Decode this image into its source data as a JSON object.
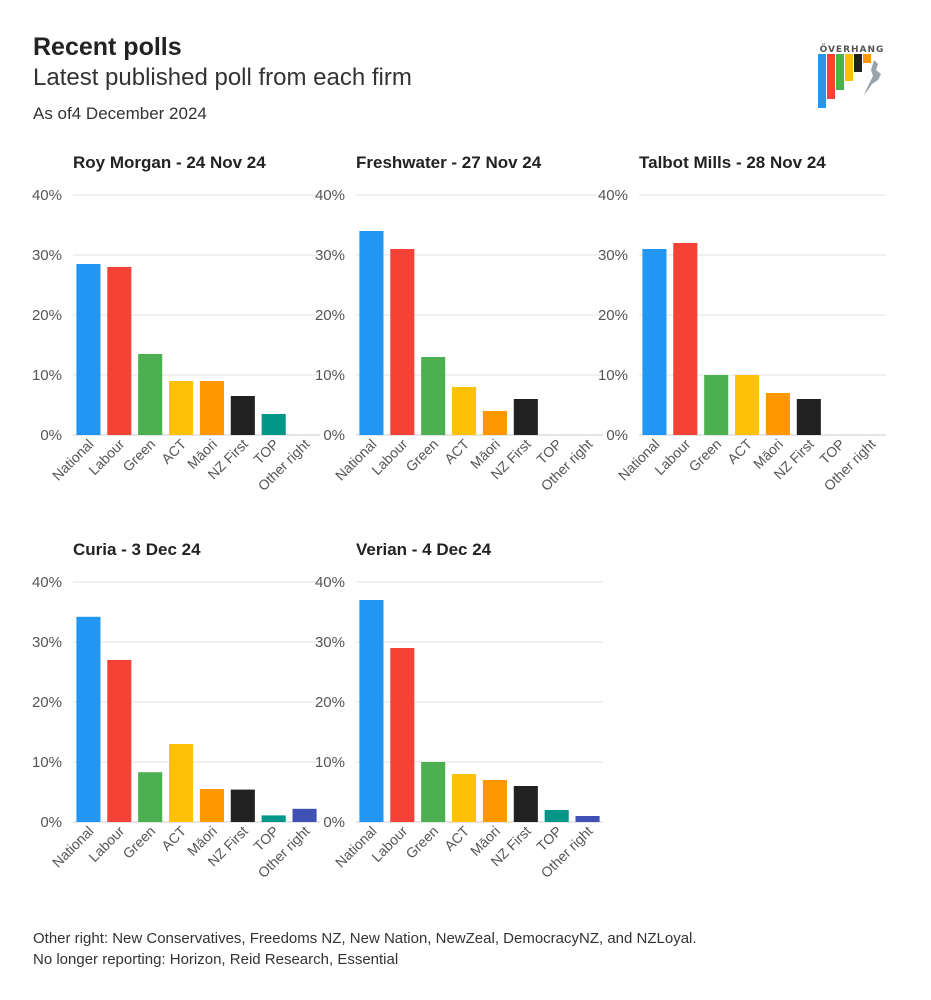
{
  "header": {
    "title": "Recent polls",
    "subtitle": "Latest published poll from each firm",
    "as_of": "As of4 December 2024"
  },
  "logo": {
    "text": "ÖVERHANG",
    "icon": "overhang-logo-icon"
  },
  "colors": {
    "National": "#2196f3",
    "Labour": "#f44336",
    "Green": "#4caf50",
    "ACT": "#ffc107",
    "Māori": "#ff9800",
    "NZ First": "#212121",
    "TOP": "#009688",
    "Other right": "#3f51b5",
    "grid": "#e3e3e3",
    "axis_text": "#555555"
  },
  "chart_data": [
    {
      "type": "bar",
      "title": "Roy Morgan - 24 Nov 24",
      "categories": [
        "National",
        "Labour",
        "Green",
        "ACT",
        "Māori",
        "NZ First",
        "TOP",
        "Other right"
      ],
      "values": [
        28.5,
        28,
        13.5,
        9,
        9,
        6.5,
        3.5,
        null
      ],
      "ylim": [
        0,
        40
      ],
      "yticks": [
        "0%",
        "10%",
        "20%",
        "30%",
        "40%"
      ],
      "grid": true
    },
    {
      "type": "bar",
      "title": "Freshwater - 27 Nov 24",
      "categories": [
        "National",
        "Labour",
        "Green",
        "ACT",
        "Māori",
        "NZ First",
        "TOP",
        "Other right"
      ],
      "values": [
        34,
        31,
        13,
        8,
        4,
        6,
        null,
        null
      ],
      "ylim": [
        0,
        40
      ],
      "yticks": [
        "0%",
        "10%",
        "20%",
        "30%",
        "40%"
      ],
      "grid": true
    },
    {
      "type": "bar",
      "title": "Talbot Mills - 28 Nov 24",
      "categories": [
        "National",
        "Labour",
        "Green",
        "ACT",
        "Māori",
        "NZ First",
        "TOP",
        "Other right"
      ],
      "values": [
        31,
        32,
        10,
        10,
        7,
        6,
        null,
        null
      ],
      "ylim": [
        0,
        40
      ],
      "yticks": [
        "0%",
        "10%",
        "20%",
        "30%",
        "40%"
      ],
      "grid": true
    },
    {
      "type": "bar",
      "title": "Curia - 3 Dec 24",
      "categories": [
        "National",
        "Labour",
        "Green",
        "ACT",
        "Māori",
        "NZ First",
        "TOP",
        "Other right"
      ],
      "values": [
        34.2,
        27,
        8.3,
        13,
        5.5,
        5.4,
        1.1,
        2.2
      ],
      "ylim": [
        0,
        40
      ],
      "yticks": [
        "0%",
        "10%",
        "20%",
        "30%",
        "40%"
      ],
      "grid": true
    },
    {
      "type": "bar",
      "title": "Verian - 4 Dec 24",
      "categories": [
        "National",
        "Labour",
        "Green",
        "ACT",
        "Māori",
        "NZ First",
        "TOP",
        "Other right"
      ],
      "values": [
        37,
        29,
        10,
        8,
        7,
        6,
        2,
        1
      ],
      "ylim": [
        0,
        40
      ],
      "yticks": [
        "0%",
        "10%",
        "20%",
        "30%",
        "40%"
      ],
      "grid": true
    }
  ],
  "footer": {
    "note1": "Other right: New Conservatives, Freedoms NZ, New Nation, NewZeal, DemocracyNZ, and NZLoyal.",
    "note2": "No longer reporting: Horizon, Reid Research, Essential"
  }
}
